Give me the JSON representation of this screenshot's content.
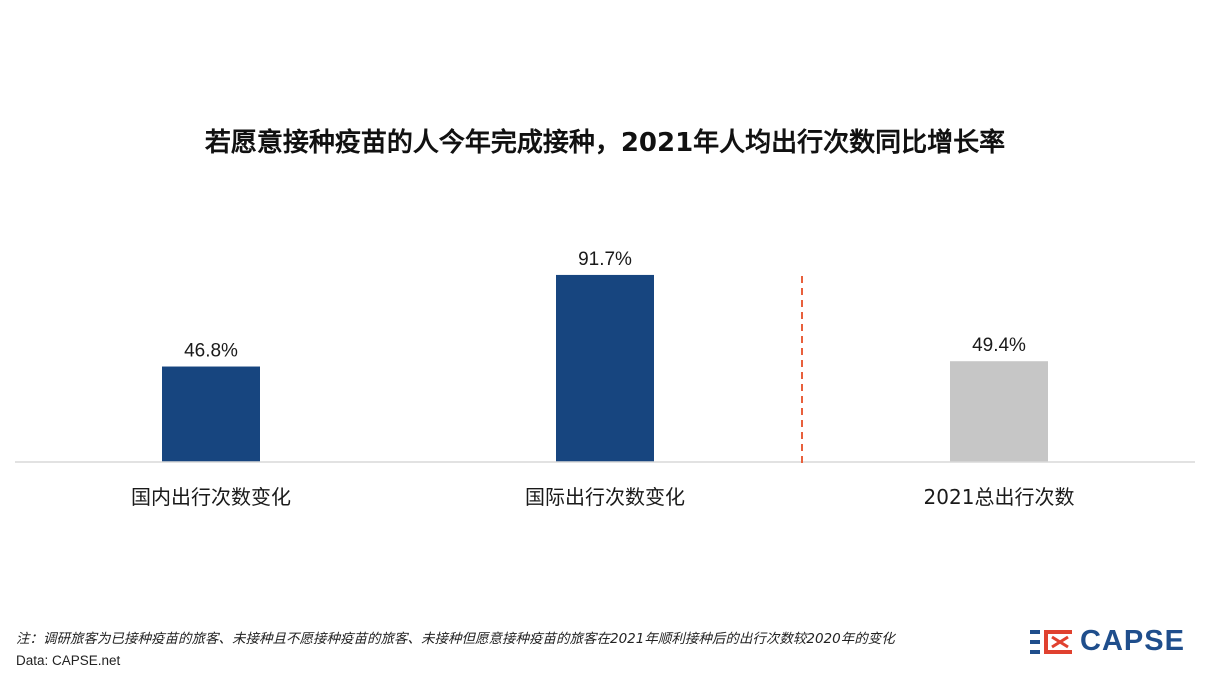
{
  "title": "若愿意接种疫苗的人今年完成接种，2021年人均出行次数同比增长率",
  "chart_data": {
    "type": "bar",
    "categories": [
      "国内出行次数变化",
      "国际出行次数变化",
      "2021总出行次数"
    ],
    "values": [
      46.8,
      91.7,
      49.4
    ],
    "data_labels": [
      "46.8%",
      "91.7%",
      "49.4%"
    ],
    "unit": "%",
    "colors": [
      "#17457f",
      "#17457f",
      "#c6c6c6"
    ],
    "divider_color": "#e8603c",
    "ylim": [
      0,
      100
    ],
    "grid": false,
    "legend": "none",
    "title": "若愿意接种疫苗的人今年完成接种，2021年人均出行次数同比增长率",
    "xlabel": "",
    "ylabel": ""
  },
  "footer": {
    "note": "注：调研旅客为已接种疫苗的旅客、未接种且不愿接种疫苗的旅客、未接种但愿意接种疫苗的旅客在2021年顺利接种后的出行次数较2020年的变化",
    "source": "Data: CAPSE.net"
  },
  "logo": {
    "text": "CAPSE",
    "color": "#1f4e8c",
    "accent": "#e0412f"
  }
}
